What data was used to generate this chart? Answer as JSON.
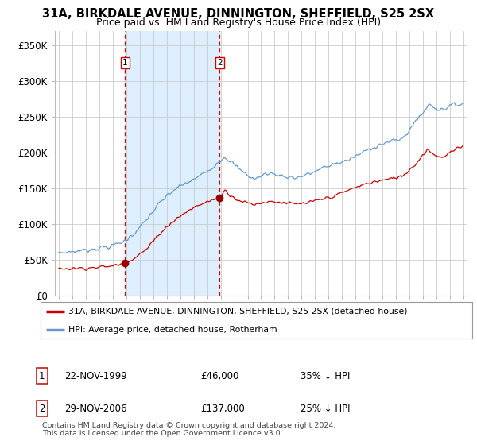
{
  "title": "31A, BIRKDALE AVENUE, DINNINGTON, SHEFFIELD, S25 2SX",
  "subtitle": "Price paid vs. HM Land Registry's House Price Index (HPI)",
  "ylim": [
    0,
    370000
  ],
  "yticks": [
    0,
    50000,
    100000,
    150000,
    200000,
    250000,
    300000,
    350000
  ],
  "ytick_labels": [
    "£0",
    "£50K",
    "£100K",
    "£150K",
    "£200K",
    "£250K",
    "£300K",
    "£350K"
  ],
  "title_fontsize": 10.5,
  "subtitle_fontsize": 9,
  "legend_label_red": "31A, BIRKDALE AVENUE, DINNINGTON, SHEFFIELD, S25 2SX (detached house)",
  "legend_label_blue": "HPI: Average price, detached house, Rotherham",
  "purchase1_date": 1999.896,
  "purchase1_price": 46000,
  "purchase1_label": "1",
  "purchase2_date": 2006.912,
  "purchase2_price": 137000,
  "purchase2_label": "2",
  "footer": "Contains HM Land Registry data © Crown copyright and database right 2024.\nThis data is licensed under the Open Government Licence v3.0.",
  "line_color_red": "#cc0000",
  "line_color_blue": "#6699cc",
  "shade_color": "#ddeeff",
  "marker_color": "#990000",
  "vline_color": "#cc0000",
  "bg_color": "#ffffff",
  "plot_bg_color": "#ffffff",
  "grid_color": "#cccccc"
}
